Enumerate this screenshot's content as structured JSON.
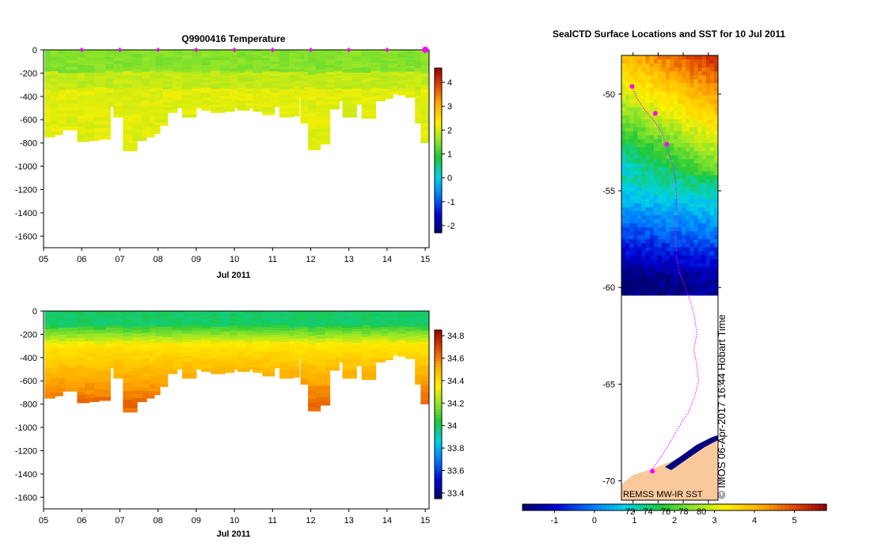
{
  "chart_data": [
    {
      "type": "heatmap",
      "title": "Q9900416  Temperature",
      "xlabel": "Jul 2011",
      "ylabel": "",
      "x_tick_labels": [
        "05",
        "06",
        "07",
        "08",
        "09",
        "10",
        "11",
        "12",
        "13",
        "14",
        "15"
      ],
      "y_tick_labels": [
        "0",
        "-200",
        "-400",
        "-600",
        "-800",
        "-1000",
        "-1200",
        "-1400",
        "-1600"
      ],
      "ylim": [
        -1700,
        0
      ],
      "xlim": [
        5.0,
        15.1
      ],
      "colorbar": {
        "min": -2.3,
        "max": 4.6,
        "tick_labels": [
          "4",
          "3",
          "2",
          "1",
          "0",
          "-1",
          "-2"
        ]
      },
      "profile_markers_x": [
        6,
        7,
        8,
        9,
        10,
        11,
        12,
        13,
        14,
        15
      ],
      "profile_x": [
        5.15,
        5.3,
        5.5,
        5.7,
        6.0,
        6.2,
        6.45,
        6.75,
        6.95,
        7.2,
        7.45,
        7.7,
        7.9,
        8.05,
        8.25,
        8.5,
        8.75,
        9.0,
        9.25,
        9.5,
        9.75,
        10.0,
        10.2,
        10.4,
        10.6,
        10.85,
        11.05,
        11.3,
        11.55,
        11.7,
        11.85,
        11.95,
        12.05,
        12.25,
        12.5,
        12.75,
        12.95,
        13.2,
        13.45,
        13.7,
        13.95,
        14.15,
        14.4,
        14.6,
        14.85,
        15.0
      ],
      "profile_depth": [
        750,
        730,
        690,
        690,
        790,
        780,
        770,
        490,
        580,
        870,
        780,
        750,
        720,
        650,
        540,
        500,
        580,
        500,
        520,
        540,
        530,
        500,
        520,
        500,
        530,
        560,
        490,
        580,
        570,
        410,
        630,
        350,
        860,
        810,
        510,
        440,
        580,
        470,
        590,
        440,
        420,
        380,
        390,
        410,
        630,
        800
      ],
      "surface_temperature": 1.6,
      "deep_temperature": 2.1
    },
    {
      "type": "heatmap",
      "title": "",
      "xlabel": "Jul 2011",
      "x_tick_labels": [
        "05",
        "06",
        "07",
        "08",
        "09",
        "10",
        "11",
        "12",
        "13",
        "14",
        "15"
      ],
      "y_tick_labels": [
        "0",
        "-200",
        "-400",
        "-600",
        "-800",
        "-1000",
        "-1200",
        "-1400",
        "-1600"
      ],
      "ylim": [
        -1700,
        0
      ],
      "xlim": [
        5.0,
        15.1
      ],
      "colorbar": {
        "min": 33.35,
        "max": 34.85,
        "tick_labels": [
          "34.8",
          "34.6",
          "34.4",
          "34.2",
          "34",
          "33.8",
          "33.6",
          "33.4"
        ]
      },
      "profile_x": [
        5.15,
        5.3,
        5.5,
        5.7,
        6.0,
        6.2,
        6.45,
        6.75,
        6.95,
        7.2,
        7.45,
        7.7,
        7.9,
        8.05,
        8.25,
        8.5,
        8.75,
        9.0,
        9.25,
        9.5,
        9.75,
        10.0,
        10.2,
        10.4,
        10.6,
        10.85,
        11.05,
        11.3,
        11.55,
        11.7,
        11.85,
        11.95,
        12.05,
        12.25,
        12.5,
        12.75,
        12.95,
        13.2,
        13.45,
        13.7,
        13.95,
        14.15,
        14.4,
        14.6,
        14.85,
        15.0
      ],
      "profile_depth": [
        750,
        730,
        690,
        690,
        790,
        780,
        770,
        490,
        580,
        870,
        780,
        750,
        720,
        650,
        540,
        500,
        580,
        500,
        520,
        540,
        530,
        500,
        520,
        500,
        530,
        560,
        490,
        580,
        570,
        410,
        630,
        350,
        860,
        810,
        510,
        440,
        580,
        470,
        590,
        440,
        420,
        380,
        390,
        410,
        630,
        800
      ],
      "surface_salinity": 33.95,
      "deep_salinity": 34.55
    },
    {
      "type": "map",
      "title": "SealCTD Surface Locations and SST for 10 Jul 2011",
      "y_tick_labels": [
        "-50",
        "-55",
        "-60",
        "-65",
        "-70"
      ],
      "lat_range": [
        -71.0,
        -48.0
      ],
      "lon_range": [
        0,
        1
      ],
      "ice_edge_lat": -60.4,
      "source_label": "REMSS MW-IR SST",
      "watermark": "© IMOS 06-Apr-2017 16:44 Hobart Time",
      "track_lat": [
        -49.5,
        -50.2,
        -50.8,
        -51.4,
        -52.0,
        -52.6,
        -53.2,
        -53.8,
        -54.5,
        -55.2,
        -56.0,
        -56.8,
        -57.6,
        -58.4,
        -59.2,
        -60.0,
        -60.8,
        -61.6,
        -62.4,
        -63.2,
        -64.0,
        -64.8,
        -65.6,
        -66.4,
        -67.0,
        -67.6,
        -68.2,
        -68.7,
        -69.1,
        -69.5
      ],
      "track_lon": [
        0.1,
        0.16,
        0.24,
        0.34,
        0.42,
        0.46,
        0.5,
        0.54,
        0.56,
        0.57,
        0.57,
        0.56,
        0.56,
        0.57,
        0.6,
        0.66,
        0.72,
        0.76,
        0.78,
        0.75,
        0.78,
        0.8,
        0.76,
        0.7,
        0.62,
        0.55,
        0.48,
        0.42,
        0.36,
        0.3
      ],
      "surface_points": [
        {
          "lat": -49.6,
          "lon": 0.11
        },
        {
          "lat": -51.0,
          "lon": 0.35
        },
        {
          "lat": -52.6,
          "lon": 0.47
        },
        {
          "lat": -69.5,
          "lon": 0.32
        }
      ],
      "colorbar": {
        "min": -1.8,
        "max": 5.8,
        "tick_labels": [
          "-1",
          "0",
          "1",
          "2",
          "3",
          "4",
          "5"
        ],
        "secondary_tick_labels": [
          "72",
          "74",
          "76",
          "78",
          "80"
        ]
      }
    }
  ],
  "colors": {
    "track": "#ff00ff",
    "land": "#f9c89b",
    "sea_ice": "#ffffff",
    "axis": "#000000"
  }
}
